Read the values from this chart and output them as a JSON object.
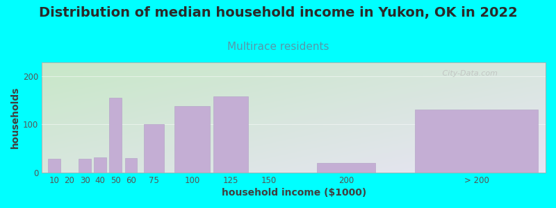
{
  "title": "Distribution of median household income in Yukon, OK in 2022",
  "subtitle": "Multirace residents",
  "xlabel": "household income ($1000)",
  "ylabel": "households",
  "background_outer": "#00FFFF",
  "bar_color": "#c4aed4",
  "bar_edge_color": "#b09ec4",
  "categories": [
    "10",
    "20",
    "30",
    "40",
    "50",
    "60",
    "75",
    "100",
    "125",
    "150",
    "200",
    "> 200"
  ],
  "values": [
    28,
    0,
    28,
    32,
    155,
    30,
    100,
    138,
    158,
    0,
    20,
    130
  ],
  "bar_centers": [
    10,
    20,
    30,
    40,
    50,
    60,
    75,
    100,
    125,
    150,
    200,
    285
  ],
  "bar_widths": [
    8,
    8,
    8,
    8,
    8,
    8,
    13,
    23,
    23,
    8,
    38,
    80
  ],
  "xlim": [
    2,
    330
  ],
  "ylim": [
    0,
    228
  ],
  "yticks": [
    0,
    100,
    200
  ],
  "xtick_positions": [
    10,
    20,
    30,
    40,
    50,
    60,
    75,
    100,
    125,
    150,
    200,
    285
  ],
  "watermark": " City-Data.com",
  "title_fontsize": 14,
  "subtitle_fontsize": 11,
  "axis_label_fontsize": 10,
  "tick_fontsize": 8.5,
  "title_color": "#2a2a2a",
  "subtitle_color": "#5599aa",
  "axis_label_color": "#404040",
  "tick_color": "#555555",
  "gradient_top_left": "#c8e8c8",
  "gradient_bottom_right": "#e8e4f4"
}
